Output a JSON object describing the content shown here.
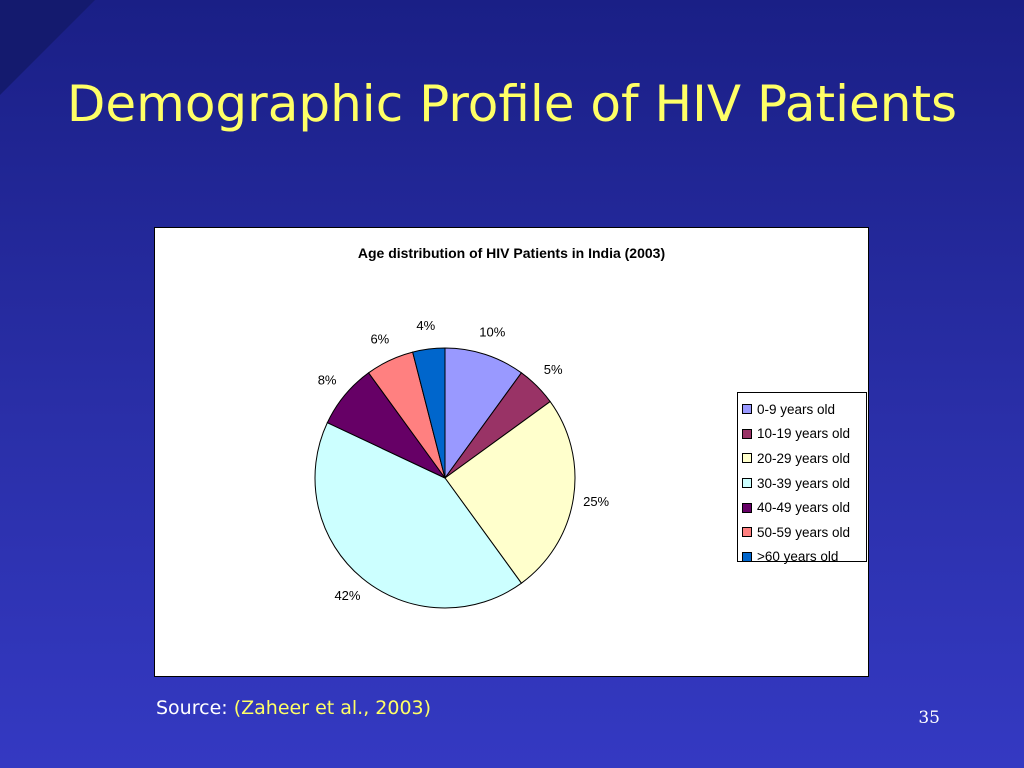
{
  "slide": {
    "title": "Demographic Profile of HIV Patients",
    "source_label": "Source:",
    "source_citation": "(Zaheer et al., 2003)",
    "page_number": "35"
  },
  "colors": {
    "background": "#2a2fa8",
    "title": "#ffff66"
  },
  "chart_data": {
    "type": "pie",
    "title": "Age distribution of HIV  Patients in India (2003)",
    "legend_position": "right",
    "slices": [
      {
        "label": "0-9 years old",
        "value": 10,
        "display": "10%",
        "color": "#9999ff"
      },
      {
        "label": "10-19 years old",
        "value": 5,
        "display": "5%",
        "color": "#993366"
      },
      {
        "label": "20-29 years old",
        "value": 25,
        "display": "25%",
        "color": "#ffffcc"
      },
      {
        "label": "30-39 years old",
        "value": 42,
        "display": "42%",
        "color": "#ccffff"
      },
      {
        "label": "40-49 years old",
        "value": 8,
        "display": "8%",
        "color": "#660066"
      },
      {
        "label": "50-59 years old",
        "value": 6,
        "display": "6%",
        "color": "#ff8080"
      },
      {
        "label": ">60 years old",
        "value": 4,
        "display": "4%",
        "color": "#0066cc"
      }
    ]
  }
}
